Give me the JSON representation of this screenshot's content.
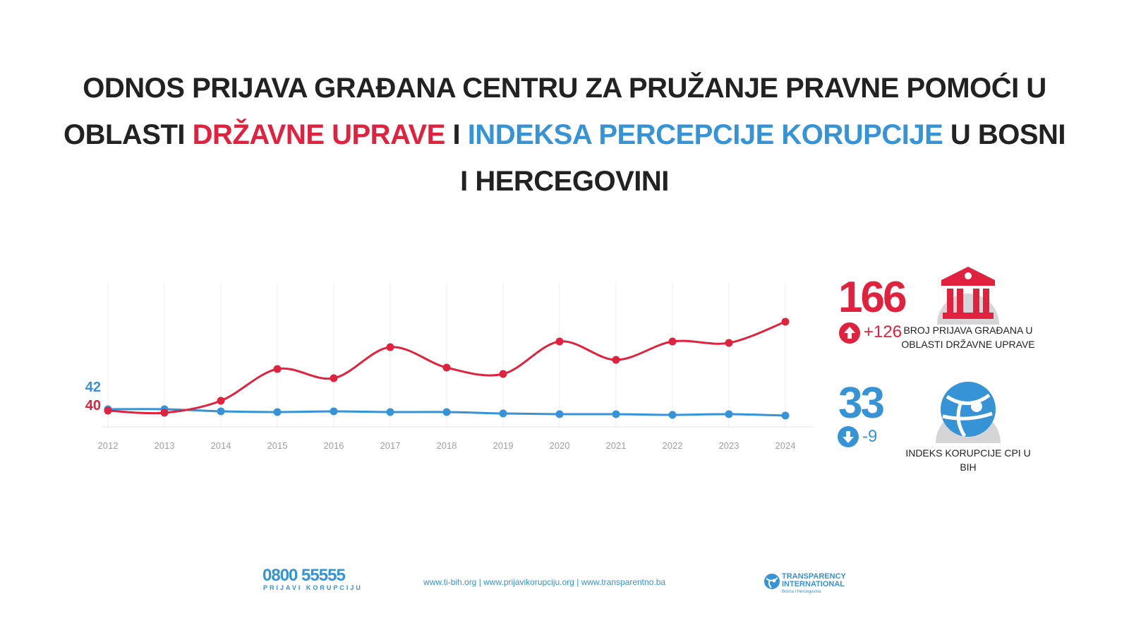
{
  "title": {
    "line1": [
      {
        "text": "ODNOS PRIJAVA GRAĐANA CENTRU ZA PRUŽANJE PRAVNE POMOĆI U",
        "color": "dark"
      }
    ],
    "line2": [
      {
        "text": "OBLASTI ",
        "color": "dark"
      },
      {
        "text": "DRŽAVNE UPRAVE",
        "color": "red"
      },
      {
        "text": " I ",
        "color": "dark"
      },
      {
        "text": "INDEKSA PERCEPCIJE KORUPCIJE",
        "color": "blue"
      },
      {
        "text": " U BOSNI I",
        "color": "dark"
      }
    ],
    "line3": [
      {
        "text": "HERCEGOVINI",
        "color": "dark"
      }
    ]
  },
  "colors": {
    "red": "#e0223f",
    "blue": "#3593d6",
    "dark": "#222222",
    "grid": "#ececec",
    "axis_text": "#a0a0a0"
  },
  "chart_data": {
    "type": "line",
    "categories": [
      "2012",
      "2013",
      "2014",
      "2015",
      "2016",
      "2017",
      "2018",
      "2019",
      "2020",
      "2021",
      "2022",
      "2023",
      "2024"
    ],
    "series": [
      {
        "color": "#e0223f",
        "values": [
          40,
          37,
          54,
          99,
          86,
          130,
          101,
          92,
          138,
          112,
          138,
          136,
          166
        ]
      },
      {
        "color": "#3593d6",
        "values": [
          42,
          42,
          39,
          38,
          39,
          38,
          38,
          36,
          35,
          35,
          34,
          35,
          33
        ]
      }
    ],
    "start_labels": {
      "red": "40",
      "blue": "42"
    },
    "grid": "vertical",
    "smooth": true
  },
  "stats": {
    "red": {
      "value": "166",
      "change": "+126",
      "direction": "up",
      "icon": "bank-icon",
      "label": "BROJ PRIJAVA GRAĐANA U OBLASTI DRŽAVNE UPRAVE"
    },
    "blue": {
      "value": "33",
      "change": "-9",
      "direction": "down",
      "icon": "transparency-globe-icon",
      "label": "INDEKS KORUPCIJE CPI U BIH"
    }
  },
  "footer": {
    "phone": "0800 55555",
    "phone_sub": "PRIJAVI KORUPCIJU",
    "links": "www.ti-bih.org | www.prijavikorupciju.org | www.transparentno.ba",
    "logo_line1": "TRANSPARENCY",
    "logo_line2": "INTERNATIONAL",
    "logo_line3": "Bosna i Hercegovina"
  }
}
